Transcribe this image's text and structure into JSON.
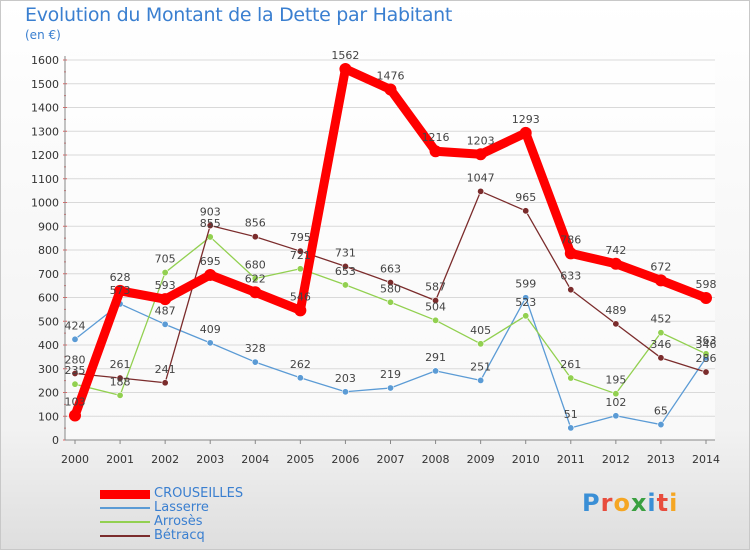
{
  "header": {
    "title": "Evolution du Montant de la Dette par Habitant",
    "unit": "(en €)"
  },
  "brand": {
    "name": "Proxiti"
  },
  "chart_data": {
    "type": "line",
    "title": "Evolution du Montant de la Dette par Habitant",
    "subtitle": "(en €)",
    "xlabel": "",
    "ylabel": "",
    "x": [
      "2000",
      "2001",
      "2002",
      "2003",
      "2004",
      "2005",
      "2006",
      "2007",
      "2008",
      "2009",
      "2010",
      "2011",
      "2012",
      "2013",
      "2014"
    ],
    "ylim": [
      0,
      1600
    ],
    "yticks": [
      0,
      100,
      200,
      300,
      400,
      500,
      600,
      700,
      800,
      900,
      1000,
      1100,
      1200,
      1300,
      1400,
      1500,
      1600
    ],
    "grid": "horizontal",
    "legend_position": "bottom-left",
    "series": [
      {
        "name": "CROUSEILLES",
        "color": "#ff0000",
        "values": [
          103,
          628,
          593,
          695,
          622,
          546,
          1562,
          1476,
          1216,
          1203,
          1293,
          786,
          742,
          672,
          598
        ],
        "labels": [
          "103",
          "628",
          "593",
          "695",
          "622",
          "546",
          "1562",
          "1476",
          "1216",
          "1203",
          "1293",
          "786",
          "742",
          "672",
          "598"
        ]
      },
      {
        "name": "Lasserre",
        "color": "#5b9bd5",
        "values": [
          424,
          573,
          487,
          409,
          328,
          262,
          203,
          219,
          291,
          251,
          599,
          51,
          102,
          65,
          346
        ],
        "labels": [
          "424",
          "573",
          "487",
          "409",
          "328",
          "262",
          "203",
          "219",
          "291",
          "251",
          "599",
          "51",
          "102",
          "65",
          "346"
        ]
      },
      {
        "name": "Arrosès",
        "color": "#92d050",
        "values": [
          235,
          188,
          705,
          855,
          680,
          721,
          653,
          580,
          504,
          405,
          523,
          261,
          195,
          452,
          363
        ],
        "labels": [
          "235",
          "188",
          "705",
          "855",
          "680",
          "721",
          "653",
          "580",
          "504",
          "405",
          "523",
          "261",
          "195",
          "452",
          "363"
        ]
      },
      {
        "name": "Bétracq",
        "color": "#7b2c2c",
        "values": [
          280,
          261,
          241,
          903,
          856,
          795,
          731,
          663,
          587,
          1047,
          965,
          633,
          489,
          346,
          286
        ],
        "labels": [
          "280",
          "261",
          "241",
          "903",
          "856",
          "795",
          "731",
          "663",
          "587",
          "1047",
          "965",
          "633",
          "489",
          "346",
          "286"
        ]
      }
    ]
  }
}
